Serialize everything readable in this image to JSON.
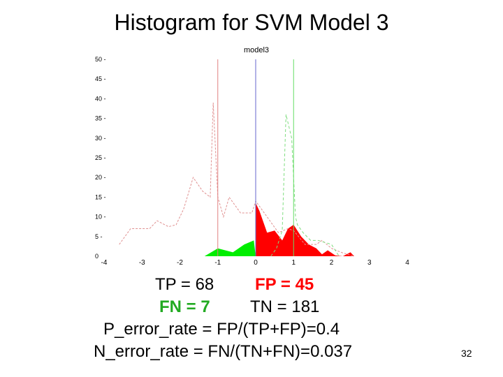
{
  "slide": {
    "title": "Histogram for SVM Model 3",
    "page_number": "32"
  },
  "stats": {
    "tp": "TP = 68",
    "fp": "FP = 45",
    "fn": "FN = 7",
    "tn": "TN = 181",
    "p_error": "P_error_rate = FP/(TP+FP)=0.4",
    "n_error": "N_error_rate = FN/(TN+FN)=0.037"
  },
  "colors": {
    "fp_text": "#ff0000",
    "fn_text": "#22aa22",
    "red_fill": "#ff0000",
    "green_fill": "#00ee00",
    "threshold_red": "#e08080",
    "threshold_blue": "#6666cc",
    "threshold_green": "#66dd66",
    "neg_curve": "#e09090",
    "pos_curve": "#80dd80"
  },
  "chart_data": {
    "type": "area",
    "title": "model3",
    "xlim": [
      -4,
      4
    ],
    "ylim": [
      0,
      50
    ],
    "xticks": [
      "-4",
      "-3",
      "-2",
      "-1",
      "0",
      "1",
      "2",
      "3",
      "4"
    ],
    "yticks": [
      "0",
      "5",
      "10",
      "15",
      "20",
      "25",
      "30",
      "35",
      "40",
      "45",
      "50"
    ],
    "thresholds": [
      {
        "name": "lower-threshold",
        "x": -1.0,
        "color": "red"
      },
      {
        "name": "zero-threshold",
        "x": 0.0,
        "color": "blue"
      },
      {
        "name": "upper-threshold",
        "x": 1.0,
        "color": "green"
      }
    ],
    "series": [
      {
        "name": "negative-distribution",
        "style": "dashed-line",
        "x": [
          -3.6,
          -3.3,
          -2.8,
          -2.6,
          -2.3,
          -2.1,
          -1.9,
          -1.65,
          -1.4,
          -1.2,
          -1.12,
          -1.0,
          -0.85,
          -0.7,
          -0.4,
          -0.1,
          0.0,
          0.3,
          0.6,
          0.85,
          1.0,
          1.3,
          1.6,
          1.75,
          2.0,
          2.25,
          2.6
        ],
        "values": [
          3,
          7,
          7,
          9,
          7.5,
          8,
          12,
          20,
          16.5,
          15,
          39,
          15,
          10,
          15,
          11,
          11,
          14,
          10,
          6,
          7,
          6.5,
          3,
          3,
          4,
          2,
          1,
          0
        ]
      },
      {
        "name": "positive-distribution",
        "style": "dashed-line",
        "x": [
          0.4,
          0.55,
          0.7,
          0.8,
          0.95,
          1.05,
          1.1,
          1.25,
          1.45,
          1.65,
          2.0,
          2.2
        ],
        "values": [
          0,
          2,
          6.5,
          36,
          30,
          10,
          8,
          6,
          4,
          4,
          3,
          0
        ]
      },
      {
        "name": "false-negative-area",
        "style": "fill-green",
        "x": [
          -1.35,
          -1.0,
          -0.6,
          -0.3,
          -0.05,
          0.0
        ],
        "values": [
          0,
          2,
          1,
          3,
          4,
          0
        ]
      },
      {
        "name": "false-positive-area",
        "style": "fill-red",
        "x": [
          0.0,
          0.1,
          0.3,
          0.5,
          0.7,
          0.85,
          1.0,
          1.2,
          1.4,
          1.6,
          1.75,
          1.9,
          2.1,
          2.3,
          2.5,
          2.6
        ],
        "values": [
          13.5,
          11.5,
          6,
          6.5,
          4,
          7,
          8,
          5,
          3,
          2,
          0.5,
          1.5,
          0.2,
          0,
          1,
          0
        ]
      }
    ]
  }
}
